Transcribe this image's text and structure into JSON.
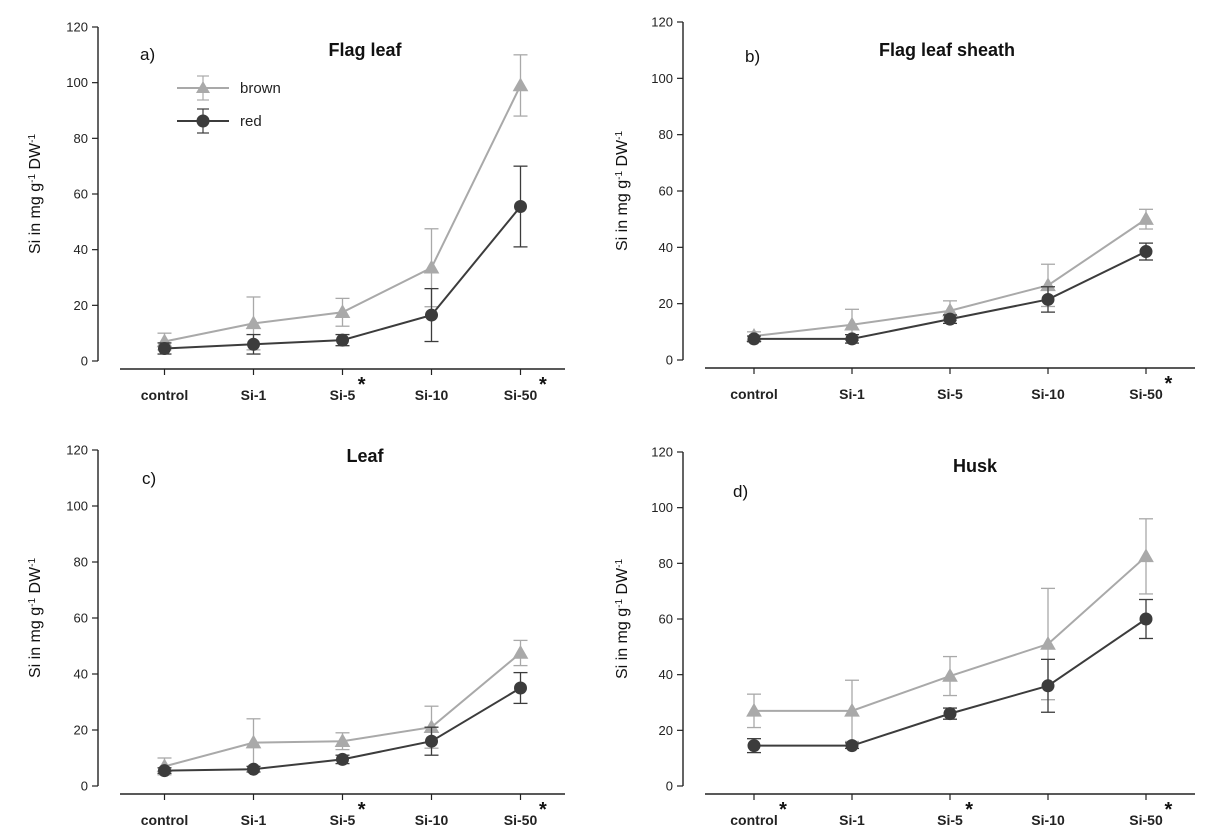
{
  "figure": {
    "colors": {
      "brown": "#a9a9a9",
      "red": "#3c3c3c",
      "axis": "#222222"
    }
  },
  "chart_data": [
    {
      "type": "line",
      "panel": "a)",
      "title": "Flag leaf",
      "ylabel": "Si in mg g-1 DW-1",
      "ylim": [
        0,
        120
      ],
      "yticks": [
        0,
        20,
        40,
        60,
        80,
        100,
        120
      ],
      "categories": [
        "control",
        "Si-1",
        "Si-5",
        "Si-10",
        "Si-50"
      ],
      "starred": [
        false,
        false,
        true,
        false,
        true
      ],
      "legend": {
        "position": "top-left",
        "entries": [
          "brown",
          "red"
        ]
      },
      "series": [
        {
          "name": "brown",
          "marker": "triangle",
          "values": [
            7,
            13.5,
            17.5,
            33.5,
            99
          ],
          "error": [
            3,
            9.5,
            5,
            14,
            11
          ]
        },
        {
          "name": "red",
          "marker": "circle",
          "values": [
            4.5,
            6,
            7.5,
            16.5,
            55.5
          ],
          "error": [
            2,
            3.5,
            2,
            9.5,
            14.5
          ]
        }
      ]
    },
    {
      "type": "line",
      "panel": "b)",
      "title": "Flag leaf sheath",
      "ylabel": "Si in mg g-1 DW-1",
      "ylim": [
        0,
        120
      ],
      "yticks": [
        0,
        20,
        40,
        60,
        80,
        100,
        120
      ],
      "categories": [
        "control",
        "Si-1",
        "Si-5",
        "Si-10",
        "Si-50"
      ],
      "starred": [
        false,
        false,
        false,
        false,
        true
      ],
      "series": [
        {
          "name": "brown",
          "marker": "triangle",
          "values": [
            8.5,
            12.5,
            17.5,
            26.5,
            50
          ],
          "error": [
            1.5,
            5.5,
            3.5,
            7.5,
            3.5
          ]
        },
        {
          "name": "red",
          "marker": "circle",
          "values": [
            7.5,
            7.5,
            14.5,
            21.5,
            38.5
          ],
          "error": [
            1,
            1.5,
            1.5,
            4.5,
            3
          ]
        }
      ]
    },
    {
      "type": "line",
      "panel": "c)",
      "title": "Leaf",
      "ylabel": "Si in mg g-1 DW-1",
      "ylim": [
        0,
        120
      ],
      "yticks": [
        0,
        20,
        40,
        60,
        80,
        100,
        120
      ],
      "categories": [
        "control",
        "Si-1",
        "Si-5",
        "Si-10",
        "Si-50"
      ],
      "starred": [
        false,
        false,
        true,
        false,
        true
      ],
      "series": [
        {
          "name": "brown",
          "marker": "triangle",
          "values": [
            7,
            15.5,
            16,
            21,
            47.5
          ],
          "error": [
            3,
            8.5,
            3,
            7.5,
            4.5
          ]
        },
        {
          "name": "red",
          "marker": "circle",
          "values": [
            5.5,
            6,
            9.5,
            16,
            35
          ],
          "error": [
            1,
            1,
            1.5,
            5,
            5.5
          ]
        }
      ]
    },
    {
      "type": "line",
      "panel": "d)",
      "title": "Husk",
      "ylabel": "Si in mg g-1 DW-1",
      "ylim": [
        0,
        120
      ],
      "yticks": [
        0,
        20,
        40,
        60,
        80,
        100,
        120
      ],
      "categories": [
        "control",
        "Si-1",
        "Si-5",
        "Si-10",
        "Si-50"
      ],
      "starred": [
        true,
        false,
        true,
        false,
        true
      ],
      "series": [
        {
          "name": "brown",
          "marker": "triangle",
          "values": [
            27,
            27,
            39.5,
            51,
            82.5
          ],
          "error": [
            6,
            11,
            7,
            20,
            13.5
          ]
        },
        {
          "name": "red",
          "marker": "circle",
          "values": [
            14.5,
            14.5,
            26,
            36,
            60
          ],
          "error": [
            2.5,
            1,
            2,
            9.5,
            7
          ]
        }
      ]
    }
  ]
}
